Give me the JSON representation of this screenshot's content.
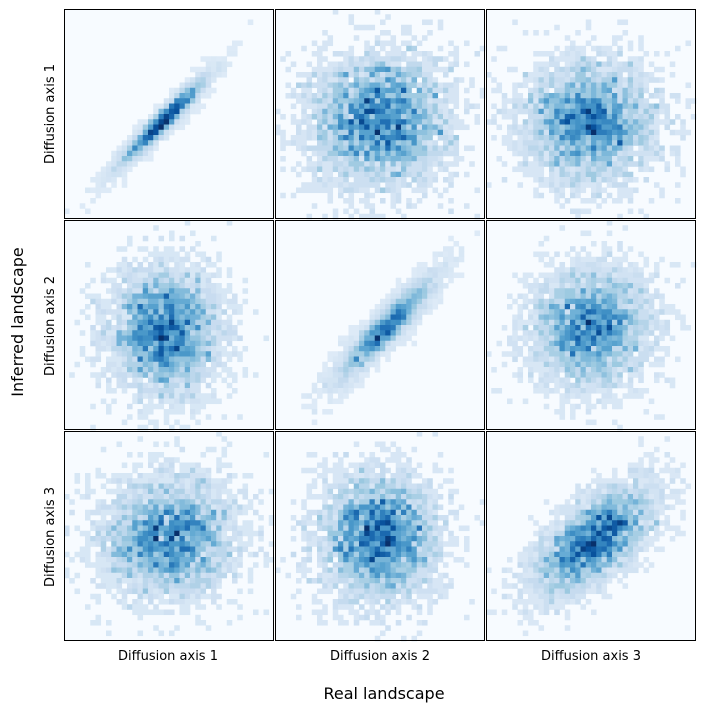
{
  "figure": {
    "xlabel": "Real landscape",
    "ylabel": "Inferred landscape",
    "col_labels": [
      "Diffusion axis 1",
      "Diffusion axis 2",
      "Diffusion axis 3"
    ],
    "row_labels": [
      "Diffusion axis 1",
      "Diffusion axis 2",
      "Diffusion axis 3"
    ]
  },
  "chart_data": {
    "type": "heatmap",
    "layout": "3x3 grid of 2D histograms",
    "colormap": "Blues",
    "colors": {
      "low": "#f7fbff",
      "high": "#08519c",
      "border": "#000000"
    },
    "xlabel": "Real landscape",
    "ylabel": "Inferred landscape",
    "axis_ticks": "none",
    "grid": false,
    "panels": [
      {
        "row": 0,
        "col": 0,
        "x_label": "Diffusion axis 1",
        "y_label": "Diffusion axis 1",
        "correlation": 0.96,
        "spread_x": 0.34,
        "spread_y": 0.34,
        "center": [
          -0.08,
          -0.1
        ]
      },
      {
        "row": 0,
        "col": 1,
        "x_label": "Diffusion axis 2",
        "y_label": "Diffusion axis 1",
        "correlation": 0.05,
        "spread_x": 0.52,
        "spread_y": 0.5,
        "center": [
          0.0,
          -0.1
        ]
      },
      {
        "row": 0,
        "col": 2,
        "x_label": "Diffusion axis 3",
        "y_label": "Diffusion axis 1",
        "correlation": 0.0,
        "spread_x": 0.5,
        "spread_y": 0.45,
        "center": [
          0.0,
          -0.12
        ]
      },
      {
        "row": 1,
        "col": 0,
        "x_label": "Diffusion axis 1",
        "y_label": "Diffusion axis 2",
        "correlation": 0.05,
        "spread_x": 0.42,
        "spread_y": 0.48,
        "center": [
          -0.05,
          -0.1
        ]
      },
      {
        "row": 1,
        "col": 1,
        "x_label": "Diffusion axis 2",
        "y_label": "Diffusion axis 2",
        "correlation": 0.92,
        "spread_x": 0.38,
        "spread_y": 0.4,
        "center": [
          0.08,
          -0.05
        ]
      },
      {
        "row": 1,
        "col": 2,
        "x_label": "Diffusion axis 3",
        "y_label": "Diffusion axis 2",
        "correlation": 0.05,
        "spread_x": 0.45,
        "spread_y": 0.45,
        "center": [
          0.0,
          -0.05
        ]
      },
      {
        "row": 2,
        "col": 0,
        "x_label": "Diffusion axis 1",
        "y_label": "Diffusion axis 3",
        "correlation": 0.05,
        "spread_x": 0.5,
        "spread_y": 0.45,
        "center": [
          0.0,
          -0.02
        ]
      },
      {
        "row": 2,
        "col": 1,
        "x_label": "Diffusion axis 2",
        "y_label": "Diffusion axis 3",
        "correlation": 0.0,
        "spread_x": 0.45,
        "spread_y": 0.48,
        "center": [
          0.0,
          -0.02
        ]
      },
      {
        "row": 2,
        "col": 2,
        "x_label": "Diffusion axis 3",
        "y_label": "Diffusion axis 3",
        "correlation": 0.62,
        "spread_x": 0.45,
        "spread_y": 0.4,
        "center": [
          0.05,
          -0.05
        ]
      }
    ]
  }
}
